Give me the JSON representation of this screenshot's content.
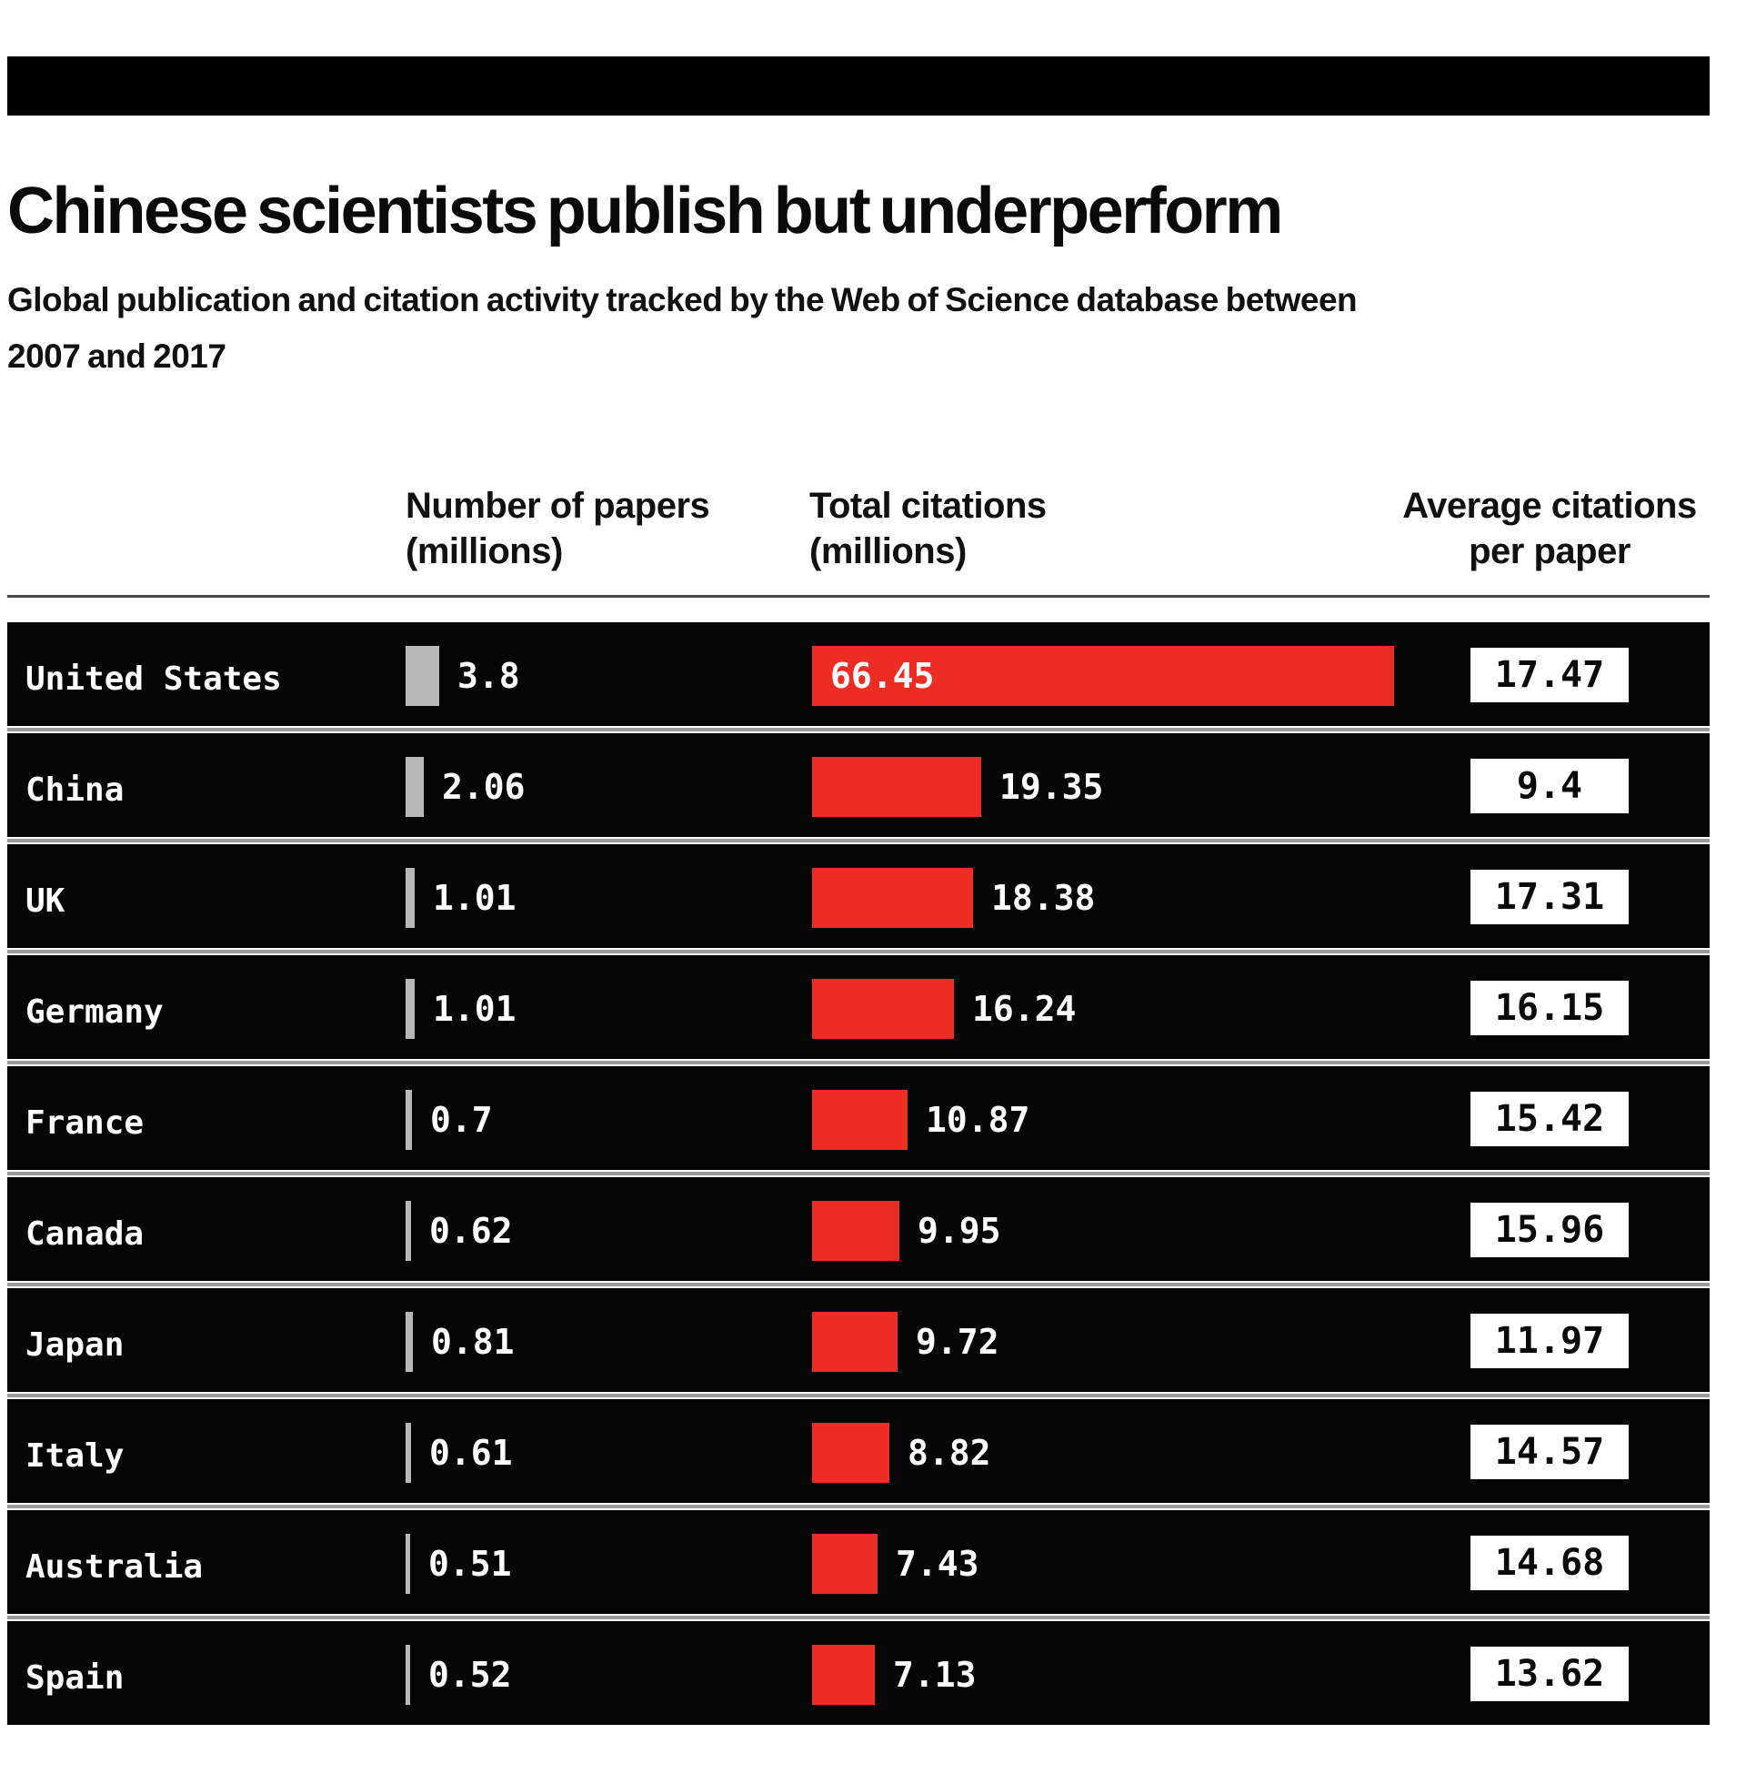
{
  "header": {
    "title": "Chinese scientists publish but underperform",
    "subtitle_line1": "Global publication and citation activity tracked by the Web of Science database between",
    "subtitle_line2": "2007 and 2017"
  },
  "columns": {
    "papers_line1": "Number of papers",
    "papers_line2": "(millions)",
    "citations_line1": "Total citations",
    "citations_line2": "(millions)",
    "average_line1": "Average citations",
    "average_line2": "per paper"
  },
  "colors": {
    "bar_red": "#ed2d23",
    "bar_gray": "#b7b7b7",
    "row_black": "#050505",
    "page_white": "#ffffff"
  },
  "rows": [
    {
      "country": "United States",
      "papers": "3.8",
      "papers_value": 3.8,
      "citations": "66.45",
      "citations_value": 66.45,
      "avg": "17.47",
      "citation_label_inside": true
    },
    {
      "country": "China",
      "papers": "2.06",
      "papers_value": 2.06,
      "citations": "19.35",
      "citations_value": 19.35,
      "avg": "9.4",
      "citation_label_inside": false
    },
    {
      "country": "UK",
      "papers": "1.01",
      "papers_value": 1.01,
      "citations": "18.38",
      "citations_value": 18.38,
      "avg": "17.31",
      "citation_label_inside": false
    },
    {
      "country": "Germany",
      "papers": "1.01",
      "papers_value": 1.01,
      "citations": "16.24",
      "citations_value": 16.24,
      "avg": "16.15",
      "citation_label_inside": false
    },
    {
      "country": "France",
      "papers": "0.7",
      "papers_value": 0.7,
      "citations": "10.87",
      "citations_value": 10.87,
      "avg": "15.42",
      "citation_label_inside": false
    },
    {
      "country": "Canada",
      "papers": "0.62",
      "papers_value": 0.62,
      "citations": "9.95",
      "citations_value": 9.95,
      "avg": "15.96",
      "citation_label_inside": false
    },
    {
      "country": "Japan",
      "papers": "0.81",
      "papers_value": 0.81,
      "citations": "9.72",
      "citations_value": 9.72,
      "avg": "11.97",
      "citation_label_inside": false
    },
    {
      "country": "Italy",
      "papers": "0.61",
      "papers_value": 0.61,
      "citations": "8.82",
      "citations_value": 8.82,
      "avg": "14.57",
      "citation_label_inside": false
    },
    {
      "country": "Australia",
      "papers": "0.51",
      "papers_value": 0.51,
      "citations": "7.43",
      "citations_value": 7.43,
      "avg": "14.68",
      "citation_label_inside": false
    },
    {
      "country": "Spain",
      "papers": "0.52",
      "papers_value": 0.52,
      "citations": "7.13",
      "citations_value": 7.13,
      "avg": "13.62",
      "citation_label_inside": false
    }
  ],
  "chart_data": {
    "type": "bar",
    "orientation": "horizontal",
    "title": "Chinese scientists publish but underperform",
    "subtitle": "Global publication and citation activity tracked by the Web of Science database between 2007 and 2017",
    "categories": [
      "United States",
      "China",
      "UK",
      "Germany",
      "France",
      "Canada",
      "Japan",
      "Italy",
      "Australia",
      "Spain"
    ],
    "series": [
      {
        "name": "Number of papers (millions)",
        "color": "#b7b7b7",
        "values": [
          3.8,
          2.06,
          1.01,
          1.01,
          0.7,
          0.62,
          0.81,
          0.61,
          0.51,
          0.52
        ]
      },
      {
        "name": "Total citations (millions)",
        "color": "#ed2d23",
        "values": [
          66.45,
          19.35,
          18.38,
          16.24,
          10.87,
          9.95,
          9.72,
          8.82,
          7.43,
          7.13
        ]
      },
      {
        "name": "Average citations per paper",
        "color": "#ffffff",
        "values": [
          17.47,
          9.4,
          17.31,
          16.15,
          15.42,
          15.96,
          11.97,
          14.57,
          14.68,
          13.62
        ]
      }
    ],
    "value_axis_range_papers": [
      0,
      3.8
    ],
    "value_axis_range_citations": [
      0,
      66.45
    ],
    "grid": false,
    "legend_position": "column-headers"
  }
}
